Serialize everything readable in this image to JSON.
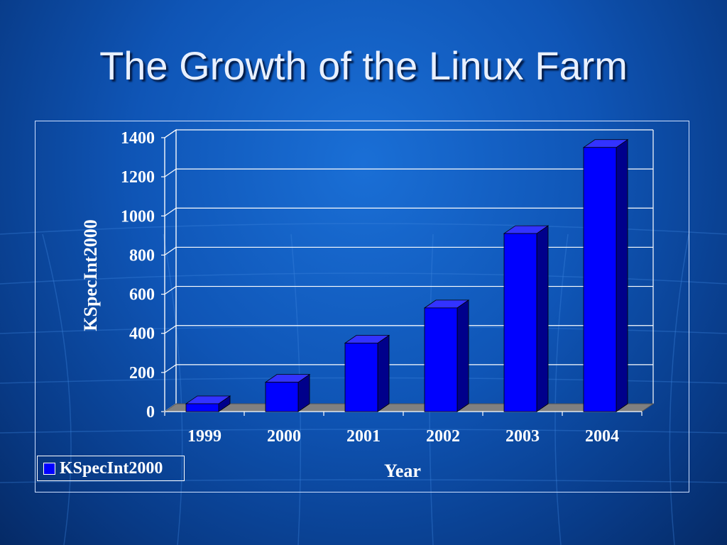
{
  "slide": {
    "title": "The Growth of the Linux Farm"
  },
  "colors": {
    "bar_front": "#0000ff",
    "bar_top": "#3333ff",
    "bar_side": "#00008b",
    "floor": "#808080"
  },
  "chart_data": {
    "type": "bar",
    "categories": [
      "1999",
      "2000",
      "2001",
      "2002",
      "2003",
      "2004"
    ],
    "series": [
      {
        "name": "KSpecInt2000",
        "values": [
          40,
          150,
          350,
          530,
          910,
          1350
        ]
      }
    ],
    "xlabel": "Year",
    "ylabel": "KSpecInt2000",
    "ylim": [
      0,
      1400
    ],
    "yticks": [
      "0",
      "200",
      "400",
      "600",
      "800",
      "1000",
      "1200",
      "1400"
    ],
    "grid": true,
    "legend_position": "bottom-left",
    "style": "3d-column"
  }
}
